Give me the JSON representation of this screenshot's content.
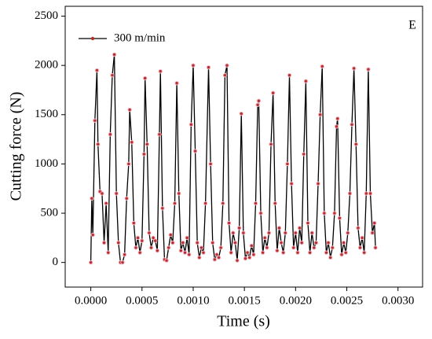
{
  "chart_data": {
    "type": "line",
    "annotation": "E",
    "xlabel": "Time (s)",
    "ylabel": "Cutting force (N)",
    "legend": "upper left",
    "line_color": "#000000",
    "xlim": [
      -0.00025,
      0.00324
    ],
    "ylim": [
      -250,
      2600
    ],
    "xticks": [
      {
        "value": 0,
        "label": "0.0000"
      },
      {
        "value": 0.0005,
        "label": "0.0005"
      },
      {
        "value": 0.001,
        "label": "0.0010"
      },
      {
        "value": 0.0015,
        "label": "0.0015"
      },
      {
        "value": 0.002,
        "label": "0.0020"
      },
      {
        "value": 0.0025,
        "label": "0.0025"
      },
      {
        "value": 0.003,
        "label": "0.0030"
      }
    ],
    "yticks": [
      0,
      500,
      1000,
      1500,
      2000,
      2500
    ],
    "x": [
      0,
      1e-05,
      2e-05,
      4e-05,
      6e-05,
      7e-05,
      9e-05,
      0.00011,
      0.00013,
      0.00015,
      0.00017,
      0.00019,
      0.00021,
      0.00023,
      0.00025,
      0.00027,
      0.00029,
      0.00031,
      0.00033,
      0.00035,
      0.00037,
      0.00038,
      0.0004,
      0.00042,
      0.00044,
      0.00046,
      0.00048,
      0.0005,
      0.00052,
      0.00053,
      0.00055,
      0.00057,
      0.00059,
      0.00061,
      0.00063,
      0.00065,
      0.00067,
      0.00068,
      0.0007,
      0.00072,
      0.00074,
      0.00076,
      0.00078,
      0.0008,
      0.00082,
      0.00084,
      0.00086,
      0.00088,
      0.0009,
      0.00092,
      0.00094,
      0.00096,
      0.00098,
      0.001,
      0.00102,
      0.00104,
      0.00106,
      0.00108,
      0.0011,
      0.00112,
      0.00115,
      0.00117,
      0.00119,
      0.00121,
      0.00123,
      0.00125,
      0.00127,
      0.00129,
      0.00131,
      0.00133,
      0.00135,
      0.00137,
      0.00139,
      0.00141,
      0.00143,
      0.00145,
      0.00147,
      0.00149,
      0.00151,
      0.00153,
      0.00155,
      0.00157,
      0.00159,
      0.00161,
      0.00163,
      0.00164,
      0.00166,
      0.00168,
      0.0017,
      0.00172,
      0.00174,
      0.00176,
      0.00178,
      0.0018,
      0.00182,
      0.00184,
      0.00186,
      0.00188,
      0.0019,
      0.00192,
      0.00194,
      0.00196,
      0.00198,
      0.002,
      0.00202,
      0.00204,
      0.00206,
      0.00208,
      0.0021,
      0.00212,
      0.00214,
      0.00216,
      0.00218,
      0.0022,
      0.00222,
      0.00224,
      0.00226,
      0.00228,
      0.0023,
      0.00232,
      0.00234,
      0.00236,
      0.00238,
      0.0024,
      0.00241,
      0.00243,
      0.00245,
      0.00247,
      0.00249,
      0.00251,
      0.00253,
      0.00255,
      0.00257,
      0.00259,
      0.00261,
      0.00263,
      0.00265,
      0.00267,
      0.00269,
      0.00271,
      0.00273,
      0.00275,
      0.00277,
      0.00278
    ],
    "series": [
      {
        "name": "300 m/min",
        "color": "#b5302a",
        "values": [
          0,
          650,
          280,
          1440,
          1950,
          1200,
          720,
          700,
          200,
          600,
          100,
          1300,
          1900,
          2110,
          700,
          200,
          0,
          0,
          80,
          650,
          1000,
          1550,
          1220,
          400,
          150,
          250,
          100,
          220,
          1100,
          1870,
          1200,
          300,
          150,
          250,
          220,
          120,
          1300,
          1940,
          550,
          30,
          20,
          150,
          280,
          200,
          600,
          1820,
          700,
          120,
          200,
          100,
          250,
          80,
          1400,
          2000,
          1130,
          200,
          50,
          150,
          100,
          600,
          1980,
          1000,
          200,
          30,
          80,
          50,
          150,
          600,
          1900,
          2000,
          400,
          100,
          300,
          200,
          20,
          350,
          1510,
          300,
          40,
          100,
          50,
          170,
          80,
          600,
          1600,
          1640,
          500,
          100,
          250,
          150,
          300,
          1200,
          1720,
          600,
          120,
          350,
          200,
          100,
          300,
          1000,
          1900,
          800,
          150,
          300,
          100,
          350,
          200,
          1100,
          1840,
          400,
          100,
          300,
          150,
          200,
          800,
          1500,
          1990,
          500,
          100,
          200,
          50,
          150,
          500,
          1380,
          1460,
          450,
          80,
          200,
          100,
          300,
          700,
          1400,
          1970,
          1200,
          350,
          150,
          250,
          100,
          700,
          1960,
          700,
          300,
          400,
          150
        ]
      }
    ]
  }
}
